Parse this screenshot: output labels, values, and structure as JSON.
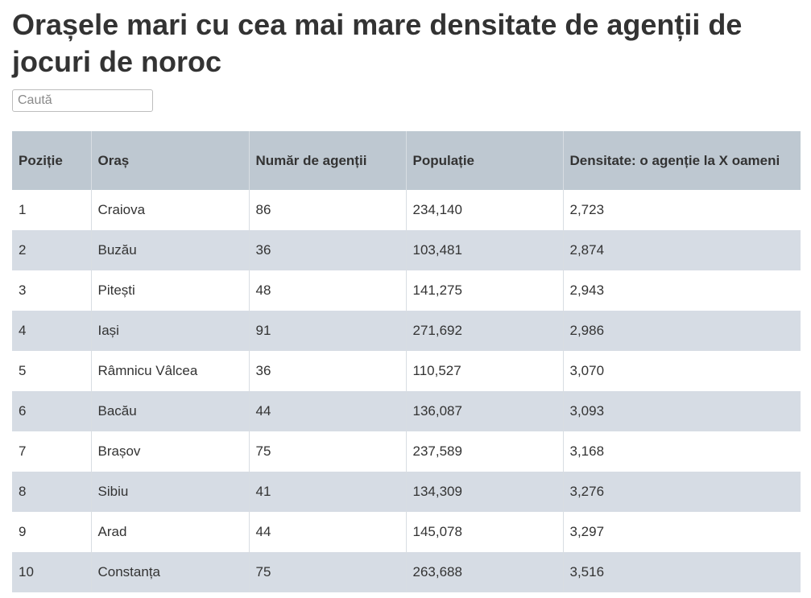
{
  "page": {
    "title": "Orașele mari cu cea mai mare densitate de agenții de jocuri de noroc"
  },
  "search": {
    "placeholder": "Caută",
    "value": ""
  },
  "table": {
    "headers": [
      "Poziție",
      "Oraș",
      "Număr de agenții",
      "Populație",
      "Densitate: o agenție la X oameni"
    ],
    "rows": [
      [
        "1",
        "Craiova",
        "86",
        "234,140",
        "2,723"
      ],
      [
        "2",
        "Buzău",
        "36",
        "103,481",
        "2,874"
      ],
      [
        "3",
        "Pitești",
        "48",
        "141,275",
        "2,943"
      ],
      [
        "4",
        "Iași",
        "91",
        "271,692",
        "2,986"
      ],
      [
        "5",
        "Râmnicu Vâlcea",
        "36",
        "110,527",
        "3,070"
      ],
      [
        "6",
        "Bacău",
        "44",
        "136,087",
        "3,093"
      ],
      [
        "7",
        "Brașov",
        "75",
        "237,589",
        "3,168"
      ],
      [
        "8",
        "Sibiu",
        "41",
        "134,309",
        "3,276"
      ],
      [
        "9",
        "Arad",
        "44",
        "145,078",
        "3,297"
      ],
      [
        "10",
        "Constanța",
        "75",
        "263,688",
        "3,516"
      ]
    ]
  },
  "colors": {
    "header_bg": "#bec8d1",
    "stripe_bg": "#d6dce4",
    "text": "#333333"
  }
}
